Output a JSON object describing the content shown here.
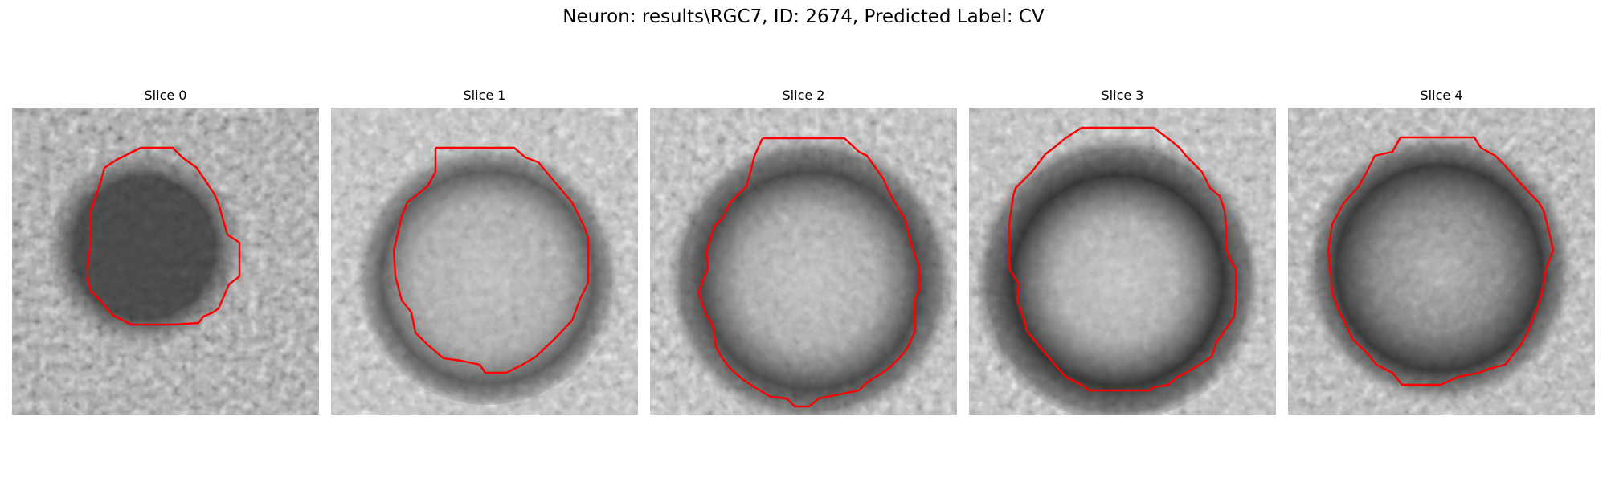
{
  "figure": {
    "title": "Neuron: results\\RGC7, ID: 2674, Predicted Label: CV"
  },
  "slices": [
    {
      "label": "Slice 0"
    },
    {
      "label": "Slice 1"
    },
    {
      "label": "Slice 2"
    },
    {
      "label": "Slice 3"
    },
    {
      "label": "Slice 4"
    }
  ],
  "colors": {
    "contour": "#ff0000",
    "background": "#ffffff"
  }
}
